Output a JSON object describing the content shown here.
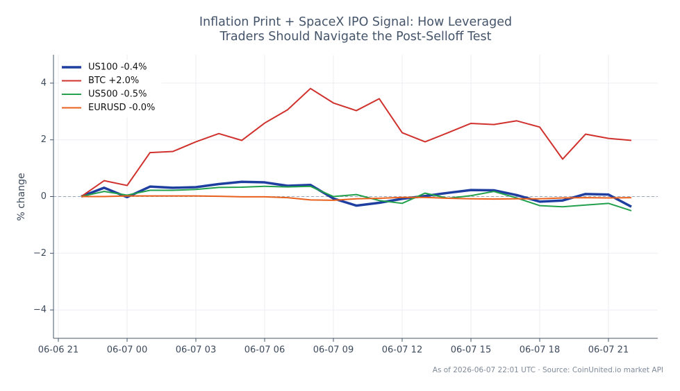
{
  "chart_data": {
    "type": "line",
    "title": [
      "Inflation Print + SpaceX IPO Signal: How Leveraged",
      "Traders Should Navigate the Post-Selloff Test"
    ],
    "y_label": "% change",
    "footer": "As of 2026-06-07 22:01 UTC · Source: CoinUnited.io market API",
    "x": [
      "06-06 22",
      "06-06 23",
      "06-07 00",
      "06-07 01",
      "06-07 02",
      "06-07 03",
      "06-07 04",
      "06-07 05",
      "06-07 06",
      "06-07 07",
      "06-07 08",
      "06-07 09",
      "06-07 10",
      "06-07 11",
      "06-07 12",
      "06-07 13",
      "06-07 14",
      "06-07 15",
      "06-07 16",
      "06-07 17",
      "06-07 18",
      "06-07 19",
      "06-07 20",
      "06-07 21",
      "06-07 22"
    ],
    "xlim": [
      "06-06 21",
      "06-07 23"
    ],
    "xticks": [
      "06-06 21",
      "06-07 00",
      "06-07 03",
      "06-07 06",
      "06-07 09",
      "06-07 12",
      "06-07 15",
      "06-07 18",
      "06-07 21"
    ],
    "ylim": [
      -5,
      5
    ],
    "yticks": [
      {
        "value": -4,
        "label": "−4"
      },
      {
        "value": -2,
        "label": "−2"
      },
      0,
      2,
      4
    ],
    "grid": true,
    "legend": "upper left",
    "series": [
      {
        "name": "US100 -0.4%",
        "color": "#1f3fa0",
        "values": [
          0,
          0.31,
          -0.02,
          0.35,
          0.31,
          0.33,
          0.44,
          0.52,
          0.5,
          0.38,
          0.41,
          -0.07,
          -0.32,
          -0.22,
          -0.08,
          0.02,
          0.13,
          0.23,
          0.22,
          0.05,
          -0.18,
          -0.14,
          0.09,
          0.07,
          -0.36
        ]
      },
      {
        "name": "BTC +2.0%",
        "color": "#d0312d",
        "values": [
          0,
          0.56,
          0.39,
          1.55,
          1.59,
          1.93,
          2.22,
          1.98,
          2.59,
          3.06,
          3.81,
          3.3,
          3.03,
          3.45,
          2.25,
          1.93,
          2.25,
          2.58,
          2.54,
          2.67,
          2.45,
          1.32,
          2.2,
          2.05,
          1.98
        ]
      },
      {
        "name": "US500 -0.5%",
        "color": "#22a04b",
        "values": [
          0,
          0.18,
          0.05,
          0.22,
          0.22,
          0.25,
          0.32,
          0.33,
          0.36,
          0.34,
          0.36,
          0,
          0.07,
          -0.14,
          -0.24,
          0.12,
          -0.06,
          0.03,
          0.18,
          -0.05,
          -0.32,
          -0.36,
          -0.3,
          -0.24,
          -0.5
        ]
      },
      {
        "name": "EURUSD -0.0%",
        "color": "#e8601c",
        "values": [
          0,
          0,
          0.02,
          0.02,
          0.02,
          0.02,
          0.01,
          -0.01,
          -0.01,
          -0.04,
          -0.12,
          -0.13,
          -0.08,
          -0.06,
          -0.03,
          -0.03,
          -0.06,
          -0.08,
          -0.09,
          -0.08,
          -0.08,
          -0.05,
          -0.04,
          -0.05,
          -0.04
        ]
      }
    ]
  }
}
